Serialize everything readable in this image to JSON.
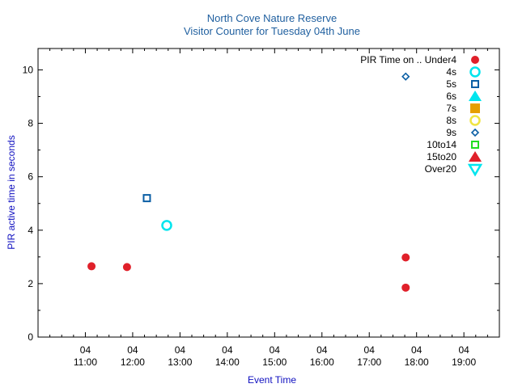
{
  "chart_data": {
    "type": "scatter",
    "title": "North Cove Nature Reserve",
    "subtitle": "Visitor Counter for Tuesday 04th June",
    "xlabel": "Event Time",
    "ylabel": "PIR active time in seconds",
    "x_ticks": [
      {
        "day": "04",
        "time": "11:00",
        "hour": 11
      },
      {
        "day": "04",
        "time": "12:00",
        "hour": 12
      },
      {
        "day": "04",
        "time": "13:00",
        "hour": 13
      },
      {
        "day": "04",
        "time": "14:00",
        "hour": 14
      },
      {
        "day": "04",
        "time": "15:00",
        "hour": 15
      },
      {
        "day": "04",
        "time": "16:00",
        "hour": 16
      },
      {
        "day": "04",
        "time": "17:00",
        "hour": 17
      },
      {
        "day": "04",
        "time": "18:00",
        "hour": 18
      },
      {
        "day": "04",
        "time": "19:00",
        "hour": 19
      }
    ],
    "xlim_hours": [
      10.0,
      19.75
    ],
    "ylim": [
      0,
      10.8
    ],
    "y_ticks": [
      0,
      2,
      4,
      6,
      8,
      10
    ],
    "legend_title": "PIR Time on ..",
    "legend_position": "top-right",
    "series": [
      {
        "name": "Under4",
        "marker": "circle-filled",
        "color": "#e0202a",
        "points": [
          {
            "hour": 11.13,
            "y": 2.65
          },
          {
            "hour": 11.88,
            "y": 2.62
          },
          {
            "hour": 17.77,
            "y": 2.98
          },
          {
            "hour": 17.77,
            "y": 1.85
          }
        ]
      },
      {
        "name": "4s",
        "marker": "circle-open",
        "color": "#00e5ee",
        "points": [
          {
            "hour": 12.72,
            "y": 4.18
          }
        ]
      },
      {
        "name": "5s",
        "marker": "square-open",
        "color": "#0b5fa5",
        "points": [
          {
            "hour": 12.3,
            "y": 5.2
          }
        ]
      },
      {
        "name": "6s",
        "marker": "triangle-filled",
        "color": "#00e5ee",
        "points": []
      },
      {
        "name": "7s",
        "marker": "square-filled",
        "color": "#e69f00",
        "points": []
      },
      {
        "name": "8s",
        "marker": "circle-open",
        "color": "#f0e442",
        "points": []
      },
      {
        "name": "9s",
        "marker": "diamond-open",
        "color": "#0b5fa5",
        "points": [
          {
            "hour": 17.77,
            "y": 9.75
          }
        ]
      },
      {
        "name": "10to14",
        "marker": "square-open",
        "color": "#22dd22",
        "points": []
      },
      {
        "name": "15to20",
        "marker": "triangle-filled",
        "color": "#e0202a",
        "points": []
      },
      {
        "name": "Over20",
        "marker": "triangle-down-open",
        "color": "#00e5ee",
        "points": []
      }
    ]
  }
}
